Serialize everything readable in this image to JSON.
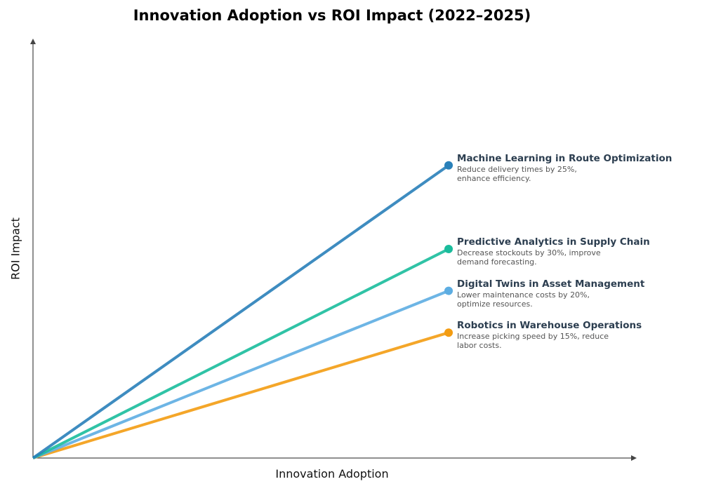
{
  "chart_data": {
    "type": "line",
    "title": "Innovation Adoption vs ROI Impact (2022–2025)",
    "xlabel": "Innovation Adoption",
    "ylabel": "ROI Impact",
    "xlim": [
      0,
      1
    ],
    "ylim": [
      0,
      1
    ],
    "grid": false,
    "ticks": false,
    "series": [
      {
        "name": "Machine Learning in Route Optimization",
        "description": "Reduce delivery times by 25%, enhance efficiency.",
        "x": [
          0,
          0.69
        ],
        "y": [
          0,
          0.7
        ],
        "color": "#2980b9"
      },
      {
        "name": "Predictive Analytics in Supply Chain",
        "description": "Decrease stockouts by 30%, improve demand forecasting.",
        "x": [
          0,
          0.69
        ],
        "y": [
          0,
          0.5
        ],
        "color": "#1abc9c"
      },
      {
        "name": "Digital Twins in Asset Management",
        "description": "Lower maintenance costs by 20%, optimize resources.",
        "x": [
          0,
          0.69
        ],
        "y": [
          0,
          0.4
        ],
        "color": "#5dade2"
      },
      {
        "name": "Robotics in Warehouse Operations",
        "description": "Increase picking speed by 15%, reduce labor costs.",
        "x": [
          0,
          0.69
        ],
        "y": [
          0,
          0.3
        ],
        "color": "#f39c12"
      }
    ]
  }
}
